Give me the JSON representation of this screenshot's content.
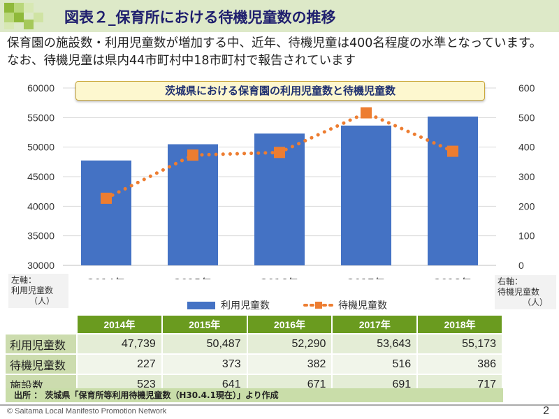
{
  "header": {
    "title": "図表２_保育所における待機児童数の推移"
  },
  "subtitle": "保育園の施設数・利用児童数が増加する中、近年、待機児童は400名程度の水準となっています。なお、待機児童は県内44市町村中18市町村で報告されています",
  "colors": {
    "header_bg": "#dde9c8",
    "logo_green": "#8fb93a",
    "bar": "#4472c4",
    "line": "#ed7d31",
    "table_header": "#6a9b1f"
  },
  "chart_data": {
    "type": "bar",
    "title": "茨城県における保育園の利用児童数と待機児童数",
    "categories": [
      "2014年",
      "2015年",
      "2016年",
      "2017年",
      "2018年"
    ],
    "series": [
      {
        "name": "利用児童数",
        "type": "bar",
        "axis": "left",
        "values": [
          47739,
          50487,
          52290,
          53643,
          55173
        ]
      },
      {
        "name": "待機児童数",
        "type": "line",
        "style": "dotted-square-markers",
        "axis": "right",
        "values": [
          227,
          373,
          382,
          516,
          386
        ]
      }
    ],
    "ylim_left": [
      30000,
      60000
    ],
    "yticks_left": [
      "30000",
      "35000",
      "40000",
      "45000",
      "50000",
      "55000",
      "60000"
    ],
    "ylim_right": [
      0,
      600
    ],
    "yticks_right": [
      "0",
      "100",
      "200",
      "300",
      "400",
      "500",
      "600"
    ],
    "ylabel_left": "左軸：利用児童数（人）",
    "ylabel_right": "右軸：待機児童数（人）",
    "grid": true,
    "legend": "bottom"
  },
  "axis_notes": {
    "left": [
      "左軸：",
      "利用児童数",
      "（人）"
    ],
    "right": [
      "右軸：",
      "待機児童数",
      "（人）"
    ]
  },
  "table": {
    "headers": [
      "",
      "2014年",
      "2015年",
      "2016年",
      "2017年",
      "2018年"
    ],
    "rows": [
      {
        "label": "利用児童数",
        "values": [
          "47,739",
          "50,487",
          "52,290",
          "53,643",
          "55,173"
        ]
      },
      {
        "label": "待機児童数",
        "values": [
          "227",
          "373",
          "382",
          "516",
          "386"
        ]
      },
      {
        "label": "施設数",
        "values": [
          "523",
          "641",
          "671",
          "691",
          "717"
        ]
      }
    ]
  },
  "source": "出所 ： 茨城県「保育所等利用待機児童数（H30.4.1現在）」より作成",
  "footer": "© Saitama Local Manifesto Promotion Network",
  "page_number": "2"
}
